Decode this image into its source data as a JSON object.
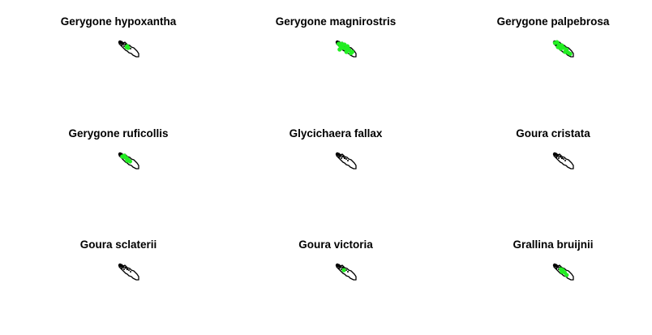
{
  "colors": {
    "outline": "#000000",
    "occurrence": "#22ee22",
    "background": "#ffffff"
  },
  "panels": [
    {
      "title": "Gerygone hypoxantha",
      "points": [
        [
          0.45,
          0.35
        ],
        [
          0.5,
          0.45
        ],
        [
          0.42,
          0.4
        ]
      ]
    },
    {
      "title": "Gerygone magnirostris",
      "points": [
        [
          0.15,
          0.2
        ],
        [
          0.3,
          0.2
        ],
        [
          0.45,
          0.25
        ],
        [
          0.35,
          0.45
        ],
        [
          0.2,
          0.55
        ],
        [
          0.5,
          0.5
        ],
        [
          0.62,
          0.45
        ],
        [
          0.7,
          0.58
        ],
        [
          0.55,
          0.7
        ],
        [
          0.78,
          0.78
        ],
        [
          0.25,
          0.35
        ],
        [
          0.6,
          0.35
        ],
        [
          0.85,
          0.7
        ]
      ]
    },
    {
      "title": "Gerygone palpebrosa",
      "points": [
        [
          0.1,
          0.15
        ],
        [
          0.2,
          0.1
        ],
        [
          0.3,
          0.25
        ],
        [
          0.45,
          0.3
        ],
        [
          0.55,
          0.45
        ],
        [
          0.7,
          0.55
        ],
        [
          0.78,
          0.75
        ],
        [
          0.62,
          0.7
        ],
        [
          0.88,
          0.82
        ],
        [
          0.25,
          0.4
        ],
        [
          0.4,
          0.5
        ]
      ]
    },
    {
      "title": "Gerygone ruficollis",
      "points": [
        [
          0.2,
          0.25
        ],
        [
          0.3,
          0.2
        ],
        [
          0.42,
          0.35
        ],
        [
          0.5,
          0.45
        ],
        [
          0.6,
          0.55
        ],
        [
          0.35,
          0.3
        ],
        [
          0.45,
          0.5
        ]
      ]
    },
    {
      "title": "Glycichaera fallax",
      "points": []
    },
    {
      "title": "Goura cristata",
      "points": []
    },
    {
      "title": "Goura sclaterii",
      "points": []
    },
    {
      "title": "Goura victoria",
      "points": [
        [
          0.42,
          0.4
        ]
      ]
    },
    {
      "title": "Grallina bruijnii",
      "points": [
        [
          0.4,
          0.35
        ],
        [
          0.5,
          0.4
        ],
        [
          0.6,
          0.55
        ],
        [
          0.7,
          0.7
        ],
        [
          0.45,
          0.5
        ]
      ]
    }
  ]
}
